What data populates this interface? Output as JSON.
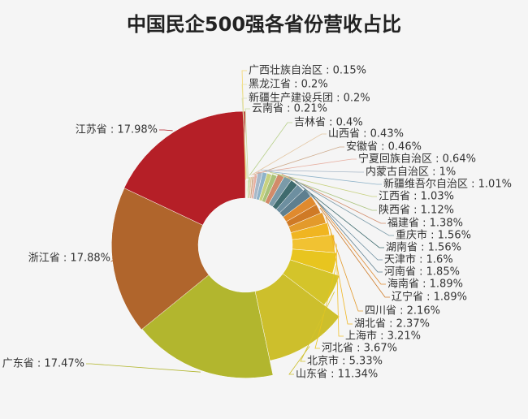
{
  "title": "中国民企500强各省份营收占比",
  "chart_data": {
    "type": "pie",
    "title": "中国民企500强各省份营收占比",
    "subtype": "rose-donut",
    "unit": "%",
    "slices": [
      {
        "name": "广西壮族自治区",
        "value": 0.15,
        "label": "广西壮族自治区 : 0.15%",
        "color": "#f5d76e"
      },
      {
        "name": "黑龙江省",
        "value": 0.2,
        "label": "黑龙江省 : 0.2%",
        "color": "#e9e3a0"
      },
      {
        "name": "新疆生产建设兵团",
        "value": 0.2,
        "label": "新疆生产建设兵团 : 0.2%",
        "color": "#d9dfb8"
      },
      {
        "name": "云南省",
        "value": 0.21,
        "label": "云南省 : 0.21%",
        "color": "#c9d99a"
      },
      {
        "name": "吉林省",
        "value": 0.4,
        "label": "吉林省 : 0.4%",
        "color": "#b8d08a"
      },
      {
        "name": "山西省",
        "value": 0.43,
        "label": "山西省 : 0.43%",
        "color": "#e3c6a2"
      },
      {
        "name": "安徽省",
        "value": 0.46,
        "label": "安徽省 : 0.46%",
        "color": "#cda98a"
      },
      {
        "name": "宁夏回族自治区",
        "value": 0.64,
        "label": "宁夏回族自治区 : 0.64%",
        "color": "#e7b0a2"
      },
      {
        "name": "内蒙古自治区",
        "value": 1,
        "label": "内蒙古自治区 : 1%",
        "color": "#a8b8c8"
      },
      {
        "name": "新疆维吾尔自治区",
        "value": 1.01,
        "label": "新疆维吾尔自治区 : 1.01%",
        "color": "#8fb3c9"
      },
      {
        "name": "江西省",
        "value": 1.03,
        "label": "江西省 : 1.03%",
        "color": "#c7d17f"
      },
      {
        "name": "陕西省",
        "value": 1.12,
        "label": "陕西省 : 1.12%",
        "color": "#a9c27a"
      },
      {
        "name": "福建省",
        "value": 1.38,
        "label": "福建省 : 1.38%",
        "color": "#d28b6a"
      },
      {
        "name": "重庆市",
        "value": 1.56,
        "label": "重庆市 : 1.56%",
        "color": "#7a9aa8"
      },
      {
        "name": "湖南省",
        "value": 1.56,
        "label": "湖南省 : 1.56%",
        "color": "#3f6b6e"
      },
      {
        "name": "天津市",
        "value": 1.6,
        "label": "天津市 : 1.6%",
        "color": "#6d8fa0"
      },
      {
        "name": "河南省",
        "value": 1.85,
        "label": "河南省 : 1.85%",
        "color": "#5e7f8f"
      },
      {
        "name": "海南省",
        "value": 1.89,
        "label": "海南省 : 1.89%",
        "color": "#e08a2e"
      },
      {
        "name": "辽宁省",
        "value": 1.89,
        "label": "辽宁省 : 1.89%",
        "color": "#cf7a26"
      },
      {
        "name": "四川省",
        "value": 2.16,
        "label": "四川省 : 2.16%",
        "color": "#e39a2b"
      },
      {
        "name": "湖北省",
        "value": 2.37,
        "label": "湖北省 : 2.37%",
        "color": "#f0b521"
      },
      {
        "name": "上海市",
        "value": 3.21,
        "label": "上海市 : 3.21%",
        "color": "#f1c232"
      },
      {
        "name": "河北省",
        "value": 3.67,
        "label": "河北省 : 3.67%",
        "color": "#e8c51f"
      },
      {
        "name": "北京市",
        "value": 5.33,
        "label": "北京市 : 5.33%",
        "color": "#d4c42a"
      },
      {
        "name": "山东省",
        "value": 11.34,
        "label": "山东省 : 11.34%",
        "color": "#cdbf2c"
      },
      {
        "name": "广东省",
        "value": 17.47,
        "label": "广东省 : 17.47%",
        "color": "#b2b62e"
      },
      {
        "name": "浙江省",
        "value": 17.88,
        "label": "浙江省 : 17.88%",
        "color": "#b0652c"
      },
      {
        "name": "江苏省",
        "value": 17.98,
        "label": "江苏省 : 17.98%",
        "color": "#b51f27"
      }
    ]
  }
}
